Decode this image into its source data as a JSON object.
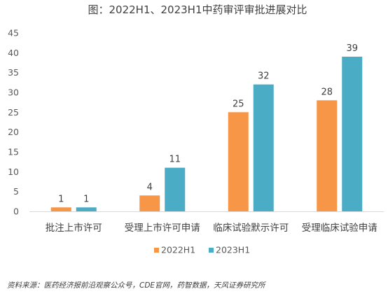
{
  "chart_data": {
    "type": "bar",
    "title": "图：2022H1、2023H1中药审评审批进展对比",
    "categories": [
      "批注上市许可",
      "受理上市许可申请",
      "临床试验默示许可",
      "受理临床试验申请"
    ],
    "series": [
      {
        "name": "2022H1",
        "values": [
          1,
          4,
          25,
          28
        ],
        "color": "#F79646"
      },
      {
        "name": "2023H1",
        "values": [
          1,
          11,
          32,
          39
        ],
        "color": "#4BACC6"
      }
    ],
    "yticks": [
      "0",
      "5",
      "10",
      "15",
      "20",
      "25",
      "30",
      "35",
      "40",
      "45"
    ],
    "ylim": [
      0,
      45
    ],
    "grid": false,
    "legend_position": "bottom"
  },
  "source_note": "资料来源：医药经济报前沿观察公众号，CDE官网，药智数据，天风证券研究所"
}
